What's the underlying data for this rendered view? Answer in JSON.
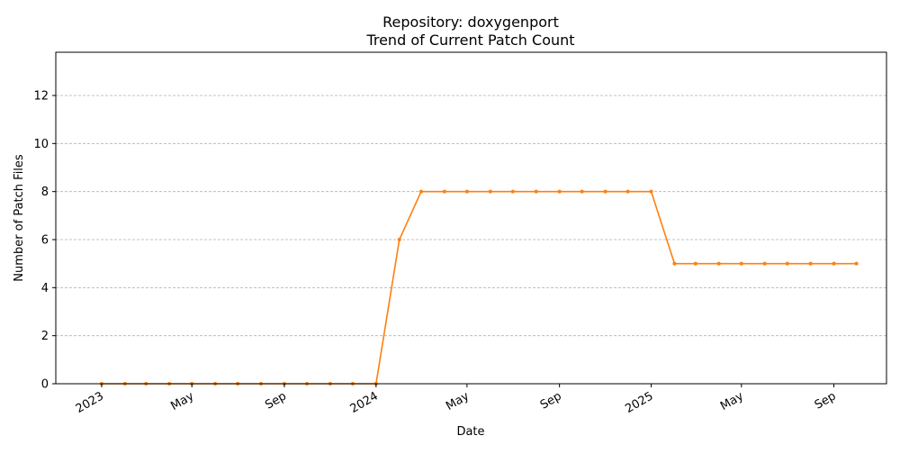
{
  "chart_data": {
    "type": "line",
    "title_line1": "Repository: doxygenport",
    "title_line2": "Trend of Current Patch Count",
    "xlabel": "Date",
    "ylabel": "Number of Patch Files",
    "xlim": [
      "2022-11-01",
      "2025-11-10"
    ],
    "ylim": [
      0,
      13.8
    ],
    "yticks": [
      0,
      2,
      4,
      6,
      8,
      10,
      12
    ],
    "xticks": [
      {
        "date": "2023-01-01",
        "label": "2023"
      },
      {
        "date": "2023-05-01",
        "label": "May"
      },
      {
        "date": "2023-09-01",
        "label": "Sep"
      },
      {
        "date": "2024-01-01",
        "label": "2024"
      },
      {
        "date": "2024-05-01",
        "label": "May"
      },
      {
        "date": "2024-09-01",
        "label": "Sep"
      },
      {
        "date": "2025-01-01",
        "label": "2025"
      },
      {
        "date": "2025-05-01",
        "label": "May"
      },
      {
        "date": "2025-09-01",
        "label": "Sep"
      }
    ],
    "grid": "horizontal dashed",
    "series": [
      {
        "color": "#ff7f0e",
        "points": [
          {
            "x": "2023-01-01",
            "y": 0
          },
          {
            "x": "2023-02-01",
            "y": 0
          },
          {
            "x": "2023-03-01",
            "y": 0
          },
          {
            "x": "2023-04-01",
            "y": 0
          },
          {
            "x": "2023-05-01",
            "y": 0
          },
          {
            "x": "2023-06-01",
            "y": 0
          },
          {
            "x": "2023-07-01",
            "y": 0
          },
          {
            "x": "2023-08-01",
            "y": 0
          },
          {
            "x": "2023-09-01",
            "y": 0
          },
          {
            "x": "2023-10-01",
            "y": 0
          },
          {
            "x": "2023-11-01",
            "y": 0
          },
          {
            "x": "2023-12-01",
            "y": 0
          },
          {
            "x": "2024-01-01",
            "y": 0
          },
          {
            "x": "2024-02-01",
            "y": 6
          },
          {
            "x": "2024-03-01",
            "y": 8
          },
          {
            "x": "2024-04-01",
            "y": 8
          },
          {
            "x": "2024-05-01",
            "y": 8
          },
          {
            "x": "2024-06-01",
            "y": 8
          },
          {
            "x": "2024-07-01",
            "y": 8
          },
          {
            "x": "2024-08-01",
            "y": 8
          },
          {
            "x": "2024-09-01",
            "y": 8
          },
          {
            "x": "2024-10-01",
            "y": 8
          },
          {
            "x": "2024-11-01",
            "y": 8
          },
          {
            "x": "2024-12-01",
            "y": 8
          },
          {
            "x": "2025-01-01",
            "y": 8
          },
          {
            "x": "2025-02-01",
            "y": 5
          },
          {
            "x": "2025-03-01",
            "y": 5
          },
          {
            "x": "2025-04-01",
            "y": 5
          },
          {
            "x": "2025-05-01",
            "y": 5
          },
          {
            "x": "2025-06-01",
            "y": 5
          },
          {
            "x": "2025-07-01",
            "y": 5
          },
          {
            "x": "2025-08-01",
            "y": 5
          },
          {
            "x": "2025-09-01",
            "y": 5
          },
          {
            "x": "2025-10-01",
            "y": 5
          }
        ]
      }
    ]
  }
}
